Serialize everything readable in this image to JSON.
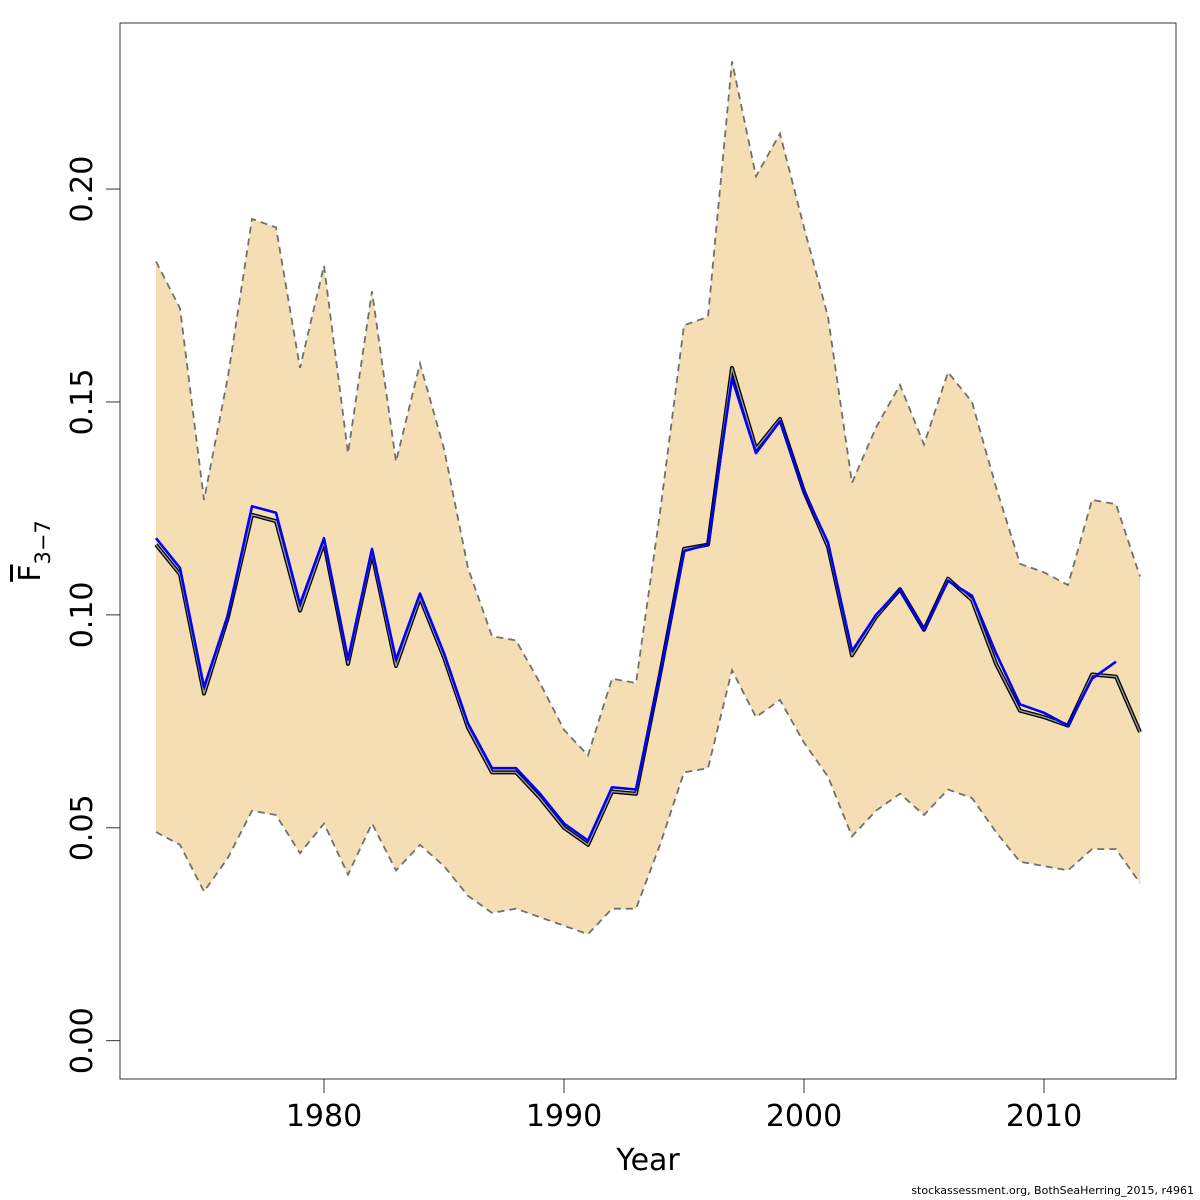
{
  "chart_data": {
    "type": "line",
    "xlabel": "Year",
    "ylabel_main": "F",
    "ylabel_sub": "3−7",
    "xlim": [
      1971.5,
      2015.5
    ],
    "ylim": [
      -0.009,
      0.239
    ],
    "x_ticks": [
      1980,
      1990,
      2000,
      2010
    ],
    "y_ticks": [
      0.0,
      0.05,
      0.1,
      0.15,
      0.2
    ],
    "x_tick_labels": [
      "1980",
      "1990",
      "2000",
      "2010"
    ],
    "y_tick_labels": [
      "0.00",
      "0.05",
      "0.10",
      "0.15",
      "0.20"
    ],
    "grid": false,
    "legend": "none",
    "band_color": "#F5DEB3",
    "band_edge_color": "#707070",
    "series_colors": [
      "#000000",
      "#0000FF"
    ],
    "confidence_band": {
      "x": [
        1973,
        1974,
        1975,
        1976,
        1977,
        1978,
        1979,
        1980,
        1981,
        1982,
        1983,
        1984,
        1985,
        1986,
        1987,
        1988,
        1989,
        1990,
        1991,
        1992,
        1993,
        1994,
        1995,
        1996,
        1997,
        1998,
        1999,
        2000,
        2001,
        2002,
        2003,
        2004,
        2005,
        2006,
        2007,
        2008,
        2009,
        2010,
        2011,
        2012,
        2013,
        2014
      ],
      "upper": [
        0.183,
        0.172,
        0.127,
        0.156,
        0.193,
        0.191,
        0.158,
        0.182,
        0.138,
        0.176,
        0.136,
        0.159,
        0.139,
        0.111,
        0.095,
        0.094,
        0.084,
        0.073,
        0.067,
        0.085,
        0.084,
        0.124,
        0.168,
        0.17,
        0.23,
        0.203,
        0.213,
        0.191,
        0.17,
        0.131,
        0.144,
        0.154,
        0.14,
        0.157,
        0.15,
        0.13,
        0.112,
        0.11,
        0.107,
        0.127,
        0.126,
        0.109
      ],
      "lower": [
        0.049,
        0.046,
        0.035,
        0.043,
        0.054,
        0.053,
        0.044,
        0.051,
        0.039,
        0.051,
        0.04,
        0.046,
        0.041,
        0.034,
        0.03,
        0.031,
        0.029,
        0.027,
        0.025,
        0.031,
        0.031,
        0.046,
        0.063,
        0.064,
        0.087,
        0.076,
        0.08,
        0.07,
        0.062,
        0.048,
        0.054,
        0.058,
        0.053,
        0.059,
        0.057,
        0.049,
        0.042,
        0.041,
        0.04,
        0.045,
        0.045,
        0.037
      ]
    },
    "series": [
      {
        "x": [
          1973,
          1974,
          1975,
          1976,
          1977,
          1978,
          1979,
          1980,
          1981,
          1982,
          1983,
          1984,
          1985,
          1986,
          1987,
          1988,
          1989,
          1990,
          1991,
          1992,
          1993,
          1994,
          1995,
          1996,
          1997,
          1998,
          1999,
          2000,
          2001,
          2002,
          2003,
          2004,
          2005,
          2006,
          2007,
          2008,
          2009,
          2010,
          2011,
          2012,
          2013,
          2014
        ],
        "values": [
          0.1165,
          0.1095,
          0.0815,
          0.0995,
          0.1235,
          0.122,
          0.101,
          0.117,
          0.0885,
          0.1145,
          0.088,
          0.104,
          0.09,
          0.0735,
          0.063,
          0.063,
          0.057,
          0.05,
          0.046,
          0.0585,
          0.058,
          0.086,
          0.1155,
          0.1165,
          0.158,
          0.139,
          0.146,
          0.129,
          0.116,
          0.0905,
          0.0995,
          0.106,
          0.0965,
          0.1085,
          0.1035,
          0.0885,
          0.0775,
          0.076,
          0.074,
          0.086,
          0.0855,
          0.0725
        ]
      },
      {
        "x": [
          1973,
          1974,
          1975,
          1976,
          1977,
          1978,
          1979,
          1980,
          1981,
          1982,
          1983,
          1984,
          1985,
          1986,
          1987,
          1988,
          1989,
          1990,
          1991,
          1992,
          1993,
          1994,
          1995,
          1996,
          1997,
          1998,
          1999,
          2000,
          2001,
          2002,
          2003,
          2004,
          2005,
          2006,
          2007,
          2008,
          2009,
          2010,
          2011,
          2012,
          2013
        ],
        "values": [
          0.118,
          0.111,
          0.083,
          0.1,
          0.1255,
          0.124,
          0.1025,
          0.118,
          0.0895,
          0.1155,
          0.0895,
          0.105,
          0.091,
          0.0745,
          0.064,
          0.064,
          0.058,
          0.051,
          0.047,
          0.0595,
          0.059,
          0.086,
          0.115,
          0.1165,
          0.1555,
          0.138,
          0.1455,
          0.129,
          0.117,
          0.0915,
          0.1,
          0.106,
          0.0965,
          0.108,
          0.1045,
          0.091,
          0.079,
          0.077,
          0.074,
          0.085,
          0.089
        ]
      }
    ]
  },
  "footer": {
    "credit": "stockassessment.org, BothSeaHerring_2015, r4961"
  }
}
